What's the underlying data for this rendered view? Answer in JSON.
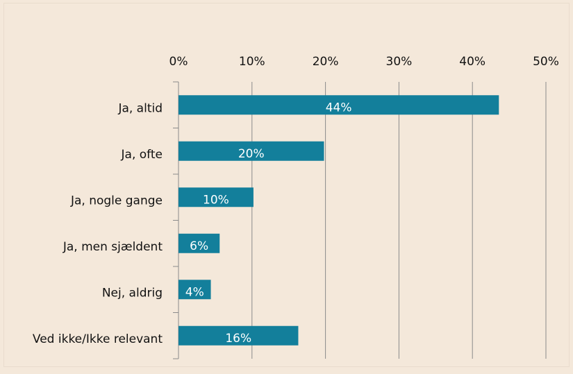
{
  "chart_data": {
    "type": "barh",
    "categories": [
      "Ja, altid",
      "Ja, ofte",
      "Ja, nogle gange",
      "Ja, men sjældent",
      "Nej, aldrig",
      "Ved ikke/Ikke relevant"
    ],
    "values": [
      43.6,
      19.8,
      10.2,
      5.6,
      4.4,
      16.3
    ],
    "value_labels": [
      "44%",
      "20%",
      "10%",
      "6%",
      "4%",
      "16%"
    ],
    "color": "#137f9b",
    "xlim": [
      0,
      50
    ],
    "xticks": [
      {
        "value": 0,
        "label": "0%"
      },
      {
        "value": 10,
        "label": "10%"
      },
      {
        "value": 20,
        "label": "20%"
      },
      {
        "value": 30,
        "label": "30%"
      },
      {
        "value": 40,
        "label": "40%"
      },
      {
        "value": 50,
        "label": "50%"
      }
    ],
    "grid": true
  }
}
